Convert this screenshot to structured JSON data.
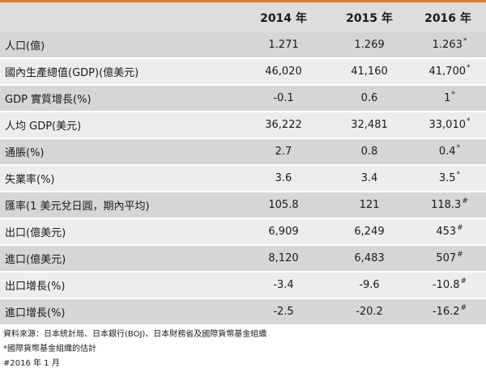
{
  "colors": {
    "accent": "#E87722",
    "header_bg": "#DDDDDD",
    "row_dark": "#D6D6D6",
    "row_light": "#EDEDED"
  },
  "table": {
    "header": {
      "item": "",
      "y2014": "2014 年",
      "y2015": "2015 年",
      "y2016": "2016 年"
    },
    "rows": [
      {
        "label": "人口(億)",
        "v2014": "1.271",
        "v2015": "1.269",
        "v2016": "1.263",
        "mark": "*"
      },
      {
        "label": "國內生產總值(GDP)(億美元)",
        "v2014": "46,020",
        "v2015": "41,160",
        "v2016": "41,700",
        "mark": "*"
      },
      {
        "label": "GDP 實質增長(%)",
        "v2014": "-0.1",
        "v2015": "0.6",
        "v2016": "1",
        "mark": "*"
      },
      {
        "label": "人均 GDP(美元)",
        "v2014": "36,222",
        "v2015": "32,481",
        "v2016": "33,010",
        "mark": "*"
      },
      {
        "label": "通脹(%)",
        "v2014": "2.7",
        "v2015": "0.8",
        "v2016": "0.4",
        "mark": "*"
      },
      {
        "label": "失業率(%)",
        "v2014": "3.6",
        "v2015": "3.4",
        "v2016": "3.5",
        "mark": "*"
      },
      {
        "label": "匯率(1 美元兌日圓，期內平均)",
        "v2014": "105.8",
        "v2015": "121",
        "v2016": "118.3",
        "mark": "#"
      },
      {
        "label": "出口(億美元)",
        "v2014": "6,909",
        "v2015": "6,249",
        "v2016": "453",
        "mark": "#"
      },
      {
        "label": "進口(億美元)",
        "v2014": "8,120",
        "v2015": "6,483",
        "v2016": "507",
        "mark": "#"
      },
      {
        "label": "出口增長(%)",
        "v2014": "-3.4",
        "v2015": "-9.6",
        "v2016": "-10.8",
        "mark": "#"
      },
      {
        "label": "進口增長(%)",
        "v2014": "-2.5",
        "v2015": "-20.2",
        "v2016": "-16.2",
        "mark": "#"
      }
    ]
  },
  "notes": {
    "source": "資料來源：日本統計局、日本銀行(BOJ)、日本財務省及國際貨幣基金組織",
    "star_note": "*國際貨幣基金組織的估計",
    "hash_note": "#2016 年 1 月"
  }
}
